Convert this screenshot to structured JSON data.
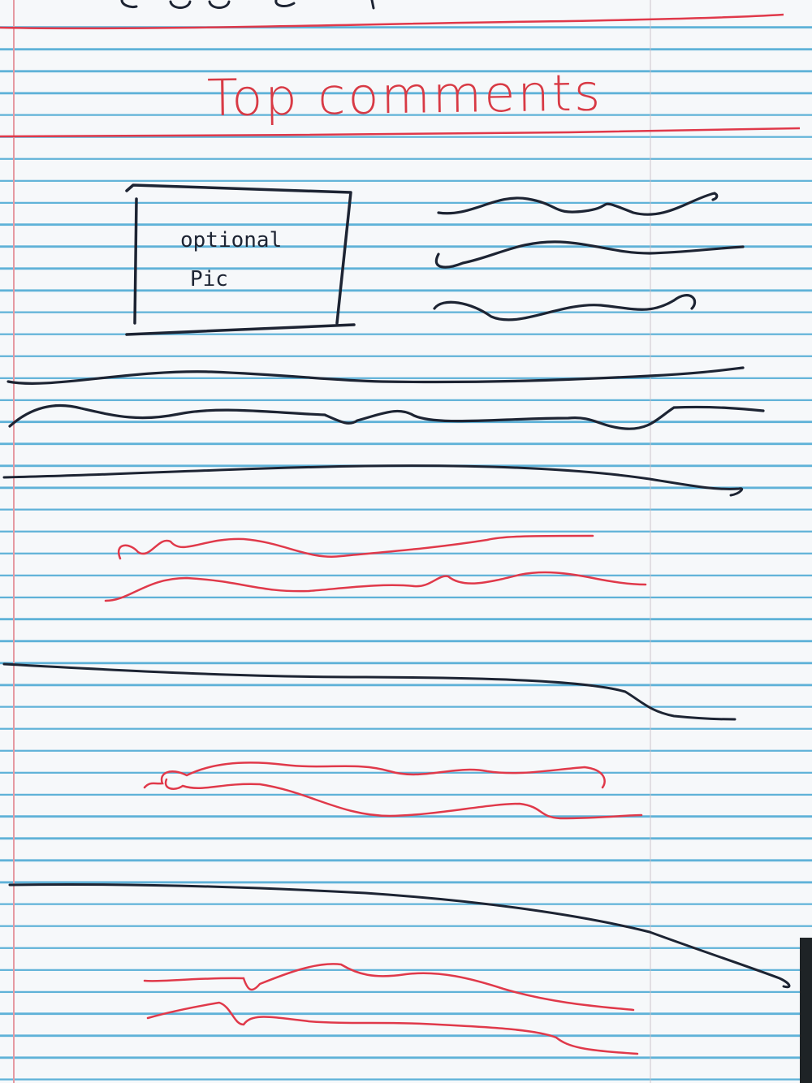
{
  "header": {
    "title": "Top comments"
  },
  "comment": {
    "image_placeholder_label_line1": "optional",
    "image_placeholder_label_line2": "Pic"
  },
  "colors": {
    "title_ink": "#d83a45",
    "black_ink": "#1d2433",
    "red_ink": "#e0394a",
    "ruling_blue": "#5fb2d8",
    "margin_pink": "#e59aa2"
  }
}
